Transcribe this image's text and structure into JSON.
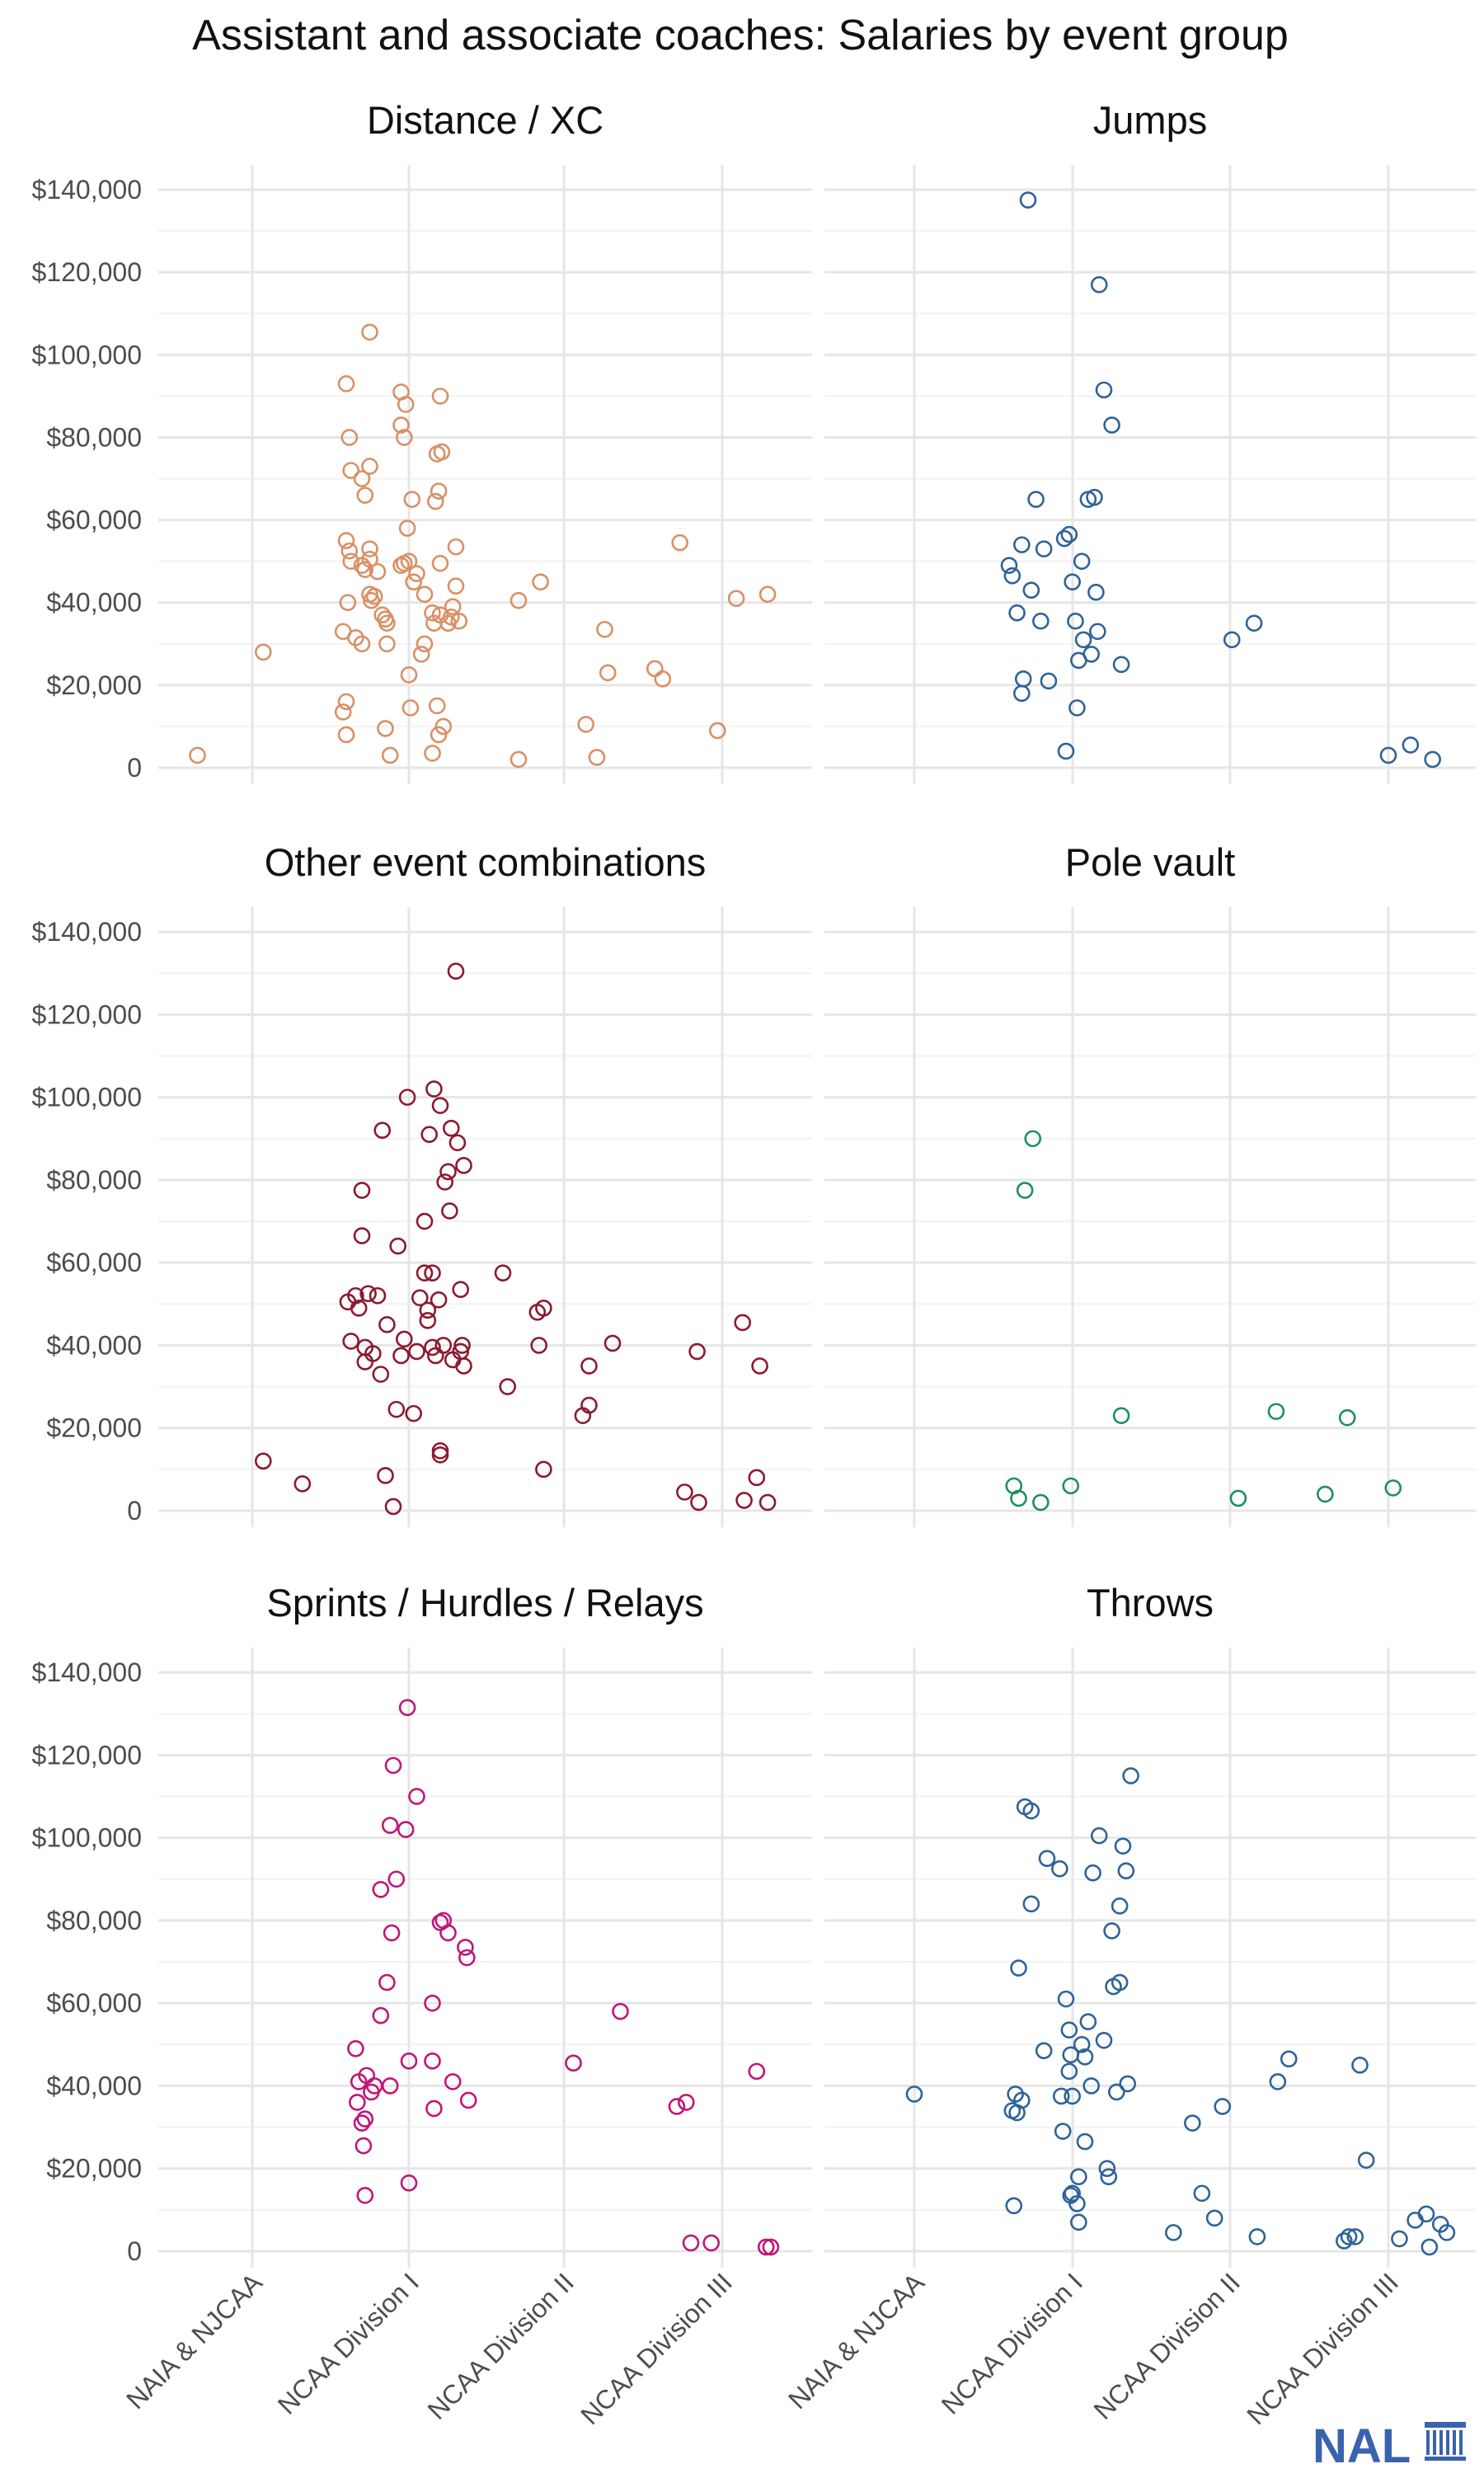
{
  "logo": {
    "text": "NAL",
    "color": "#3a63ad"
  },
  "chart_data": {
    "type": "scatter",
    "title": "Assistant and associate coaches: Salaries by event group",
    "xlabel": "",
    "ylabel": "",
    "categories": [
      "NAIA & NJCAA",
      "NCAA Division I",
      "NCAA Division II",
      "NCAA Division III"
    ],
    "y_ticks": [
      0,
      20000,
      40000,
      60000,
      80000,
      100000,
      120000,
      140000
    ],
    "y_tick_labels": [
      "0",
      "$20,000",
      "$40,000",
      "$60,000",
      "$80,000",
      "$100,000",
      "$120,000",
      "$140,000"
    ],
    "ylim": [
      -4000,
      146000
    ],
    "grid": true,
    "marker": "open-circle",
    "x_note": "x values are category positions (1 = NAIA & NJCAA ... 4 = NCAA Division III) including horizontal jitter",
    "panels": [
      {
        "title": "Distance / XC",
        "color": "#d99066",
        "points": [
          [
            0.65,
            3000
          ],
          [
            1.07,
            28000
          ],
          [
            1.6,
            93000
          ],
          [
            1.62,
            80000
          ],
          [
            1.63,
            72000
          ],
          [
            1.7,
            70000
          ],
          [
            1.72,
            66000
          ],
          [
            1.75,
            73000
          ],
          [
            1.75,
            105500
          ],
          [
            1.6,
            55000
          ],
          [
            1.62,
            52500
          ],
          [
            1.63,
            50000
          ],
          [
            1.7,
            49000
          ],
          [
            1.72,
            48000
          ],
          [
            1.75,
            42000
          ],
          [
            1.76,
            40500
          ],
          [
            1.78,
            41500
          ],
          [
            1.8,
            47500
          ],
          [
            1.83,
            37000
          ],
          [
            1.85,
            36000
          ],
          [
            1.86,
            35000
          ],
          [
            1.58,
            33000
          ],
          [
            1.66,
            31500
          ],
          [
            1.7,
            30000
          ],
          [
            1.86,
            30000
          ],
          [
            1.61,
            40000
          ],
          [
            1.6,
            16000
          ],
          [
            1.58,
            13500
          ],
          [
            1.6,
            8000
          ],
          [
            1.85,
            9500
          ],
          [
            1.88,
            3000
          ],
          [
            1.75,
            50500
          ],
          [
            1.75,
            53000
          ],
          [
            1.95,
            91000
          ],
          [
            1.98,
            88000
          ],
          [
            1.95,
            83000
          ],
          [
            1.97,
            80000
          ],
          [
            2.02,
            65000
          ],
          [
            1.99,
            58000
          ],
          [
            2.0,
            50000
          ],
          [
            1.97,
            49500
          ],
          [
            1.95,
            49000
          ],
          [
            2.05,
            47000
          ],
          [
            2.03,
            45000
          ],
          [
            2.1,
            42000
          ],
          [
            2.15,
            37500
          ],
          [
            2.16,
            35000
          ],
          [
            2.1,
            30000
          ],
          [
            2.08,
            27500
          ],
          [
            2.0,
            22500
          ],
          [
            2.01,
            14500
          ],
          [
            2.2,
            90000
          ],
          [
            2.18,
            76000
          ],
          [
            2.21,
            76500
          ],
          [
            2.19,
            67000
          ],
          [
            2.17,
            64500
          ],
          [
            2.3,
            53500
          ],
          [
            2.2,
            49500
          ],
          [
            2.3,
            44000
          ],
          [
            2.28,
            39000
          ],
          [
            2.27,
            36500
          ],
          [
            2.32,
            35500
          ],
          [
            2.25,
            35000
          ],
          [
            2.2,
            37000
          ],
          [
            2.18,
            15000
          ],
          [
            2.22,
            10000
          ],
          [
            2.19,
            8000
          ],
          [
            2.15,
            3500
          ],
          [
            2.7,
            2000
          ],
          [
            2.7,
            40500
          ],
          [
            2.84,
            45000
          ],
          [
            3.13,
            10500
          ],
          [
            3.2,
            2500
          ],
          [
            3.25,
            33500
          ],
          [
            3.27,
            23000
          ],
          [
            3.57,
            24000
          ],
          [
            3.62,
            21500
          ],
          [
            3.73,
            54500
          ],
          [
            3.97,
            9000
          ],
          [
            4.09,
            41000
          ],
          [
            4.29,
            42000
          ]
        ]
      },
      {
        "title": "Jumps",
        "color": "#2e6399",
        "points": [
          [
            1.6,
            49000
          ],
          [
            1.62,
            46500
          ],
          [
            1.65,
            37500
          ],
          [
            1.68,
            54000
          ],
          [
            1.74,
            43000
          ],
          [
            1.77,
            65000
          ],
          [
            1.8,
            35500
          ],
          [
            1.82,
            53000
          ],
          [
            1.69,
            21500
          ],
          [
            1.68,
            18000
          ],
          [
            1.85,
            21000
          ],
          [
            1.72,
            137500
          ],
          [
            1.95,
            55500
          ],
          [
            1.98,
            56500
          ],
          [
            2.0,
            45000
          ],
          [
            2.02,
            35500
          ],
          [
            2.06,
            50000
          ],
          [
            2.07,
            31000
          ],
          [
            2.1,
            65000
          ],
          [
            2.12,
            27500
          ],
          [
            2.04,
            26000
          ],
          [
            2.03,
            14500
          ],
          [
            1.96,
            4000
          ],
          [
            2.15,
            42500
          ],
          [
            2.16,
            33000
          ],
          [
            2.2,
            91500
          ],
          [
            2.25,
            83000
          ],
          [
            2.31,
            25000
          ],
          [
            2.14,
            65500
          ],
          [
            2.17,
            117000
          ],
          [
            3.01,
            31000
          ],
          [
            3.15,
            35000
          ],
          [
            4.0,
            3000
          ],
          [
            4.14,
            5500
          ],
          [
            4.28,
            2000
          ]
        ]
      },
      {
        "title": "Other event combinations",
        "color": "#8c1a2e",
        "points": [
          [
            1.07,
            12000
          ],
          [
            1.32,
            6500
          ],
          [
            1.61,
            50500
          ],
          [
            1.63,
            41000
          ],
          [
            1.66,
            52000
          ],
          [
            1.68,
            49000
          ],
          [
            1.7,
            77500
          ],
          [
            1.7,
            66500
          ],
          [
            1.72,
            39500
          ],
          [
            1.72,
            36000
          ],
          [
            1.74,
            52500
          ],
          [
            1.77,
            38000
          ],
          [
            1.8,
            52000
          ],
          [
            1.82,
            33000
          ],
          [
            1.83,
            92000
          ],
          [
            1.85,
            8500
          ],
          [
            1.86,
            45000
          ],
          [
            1.9,
            1000
          ],
          [
            1.92,
            24500
          ],
          [
            1.93,
            64000
          ],
          [
            1.95,
            37500
          ],
          [
            1.97,
            41500
          ],
          [
            1.99,
            100000
          ],
          [
            2.03,
            23500
          ],
          [
            2.05,
            38500
          ],
          [
            2.07,
            51500
          ],
          [
            2.1,
            70000
          ],
          [
            2.1,
            57500
          ],
          [
            2.12,
            48500
          ],
          [
            2.12,
            46000
          ],
          [
            2.13,
            91000
          ],
          [
            2.15,
            57500
          ],
          [
            2.15,
            39500
          ],
          [
            2.16,
            102000
          ],
          [
            2.17,
            37500
          ],
          [
            2.19,
            51000
          ],
          [
            2.2,
            98000
          ],
          [
            2.2,
            14500
          ],
          [
            2.2,
            13500
          ],
          [
            2.22,
            40000
          ],
          [
            2.23,
            79500
          ],
          [
            2.25,
            82000
          ],
          [
            2.26,
            72500
          ],
          [
            2.27,
            92500
          ],
          [
            2.28,
            36500
          ],
          [
            2.3,
            130500
          ],
          [
            2.31,
            89000
          ],
          [
            2.33,
            38500
          ],
          [
            2.34,
            40000
          ],
          [
            2.35,
            83500
          ],
          [
            2.35,
            35000
          ],
          [
            2.33,
            53500
          ],
          [
            2.6,
            57500
          ],
          [
            2.63,
            30000
          ],
          [
            2.82,
            48000
          ],
          [
            2.83,
            40000
          ],
          [
            2.86,
            49000
          ],
          [
            2.86,
            10000
          ],
          [
            3.11,
            23000
          ],
          [
            3.15,
            25500
          ],
          [
            3.15,
            35000
          ],
          [
            3.3,
            40500
          ],
          [
            3.76,
            4500
          ],
          [
            3.84,
            38500
          ],
          [
            3.85,
            2000
          ],
          [
            4.13,
            45500
          ],
          [
            4.14,
            2500
          ],
          [
            4.22,
            8000
          ],
          [
            4.24,
            35000
          ],
          [
            4.29,
            2000
          ]
        ]
      },
      {
        "title": "Pole vault",
        "color": "#1e8f5a",
        "points": [
          [
            1.63,
            6000
          ],
          [
            1.66,
            3000
          ],
          [
            1.7,
            77500
          ],
          [
            1.75,
            90000
          ],
          [
            1.8,
            2000
          ],
          [
            1.99,
            6000
          ],
          [
            2.31,
            23000
          ],
          [
            3.05,
            3000
          ],
          [
            3.29,
            24000
          ],
          [
            3.6,
            4000
          ],
          [
            3.74,
            22500
          ],
          [
            4.03,
            5500
          ]
        ]
      },
      {
        "title": "Sprints / Hurdles / Relays",
        "color": "#c0167a",
        "points": [
          [
            1.66,
            49000
          ],
          [
            1.67,
            36000
          ],
          [
            1.68,
            41000
          ],
          [
            1.7,
            31000
          ],
          [
            1.72,
            32000
          ],
          [
            1.71,
            25500
          ],
          [
            1.72,
            13500
          ],
          [
            1.73,
            42500
          ],
          [
            1.76,
            38500
          ],
          [
            1.78,
            40000
          ],
          [
            1.82,
            57000
          ],
          [
            1.82,
            87500
          ],
          [
            1.86,
            65000
          ],
          [
            1.88,
            103000
          ],
          [
            1.88,
            40000
          ],
          [
            1.89,
            77000
          ],
          [
            1.9,
            117500
          ],
          [
            1.92,
            90000
          ],
          [
            1.98,
            102000
          ],
          [
            1.99,
            131500
          ],
          [
            2.0,
            16500
          ],
          [
            2.0,
            46000
          ],
          [
            2.05,
            110000
          ],
          [
            2.15,
            60000
          ],
          [
            2.15,
            46000
          ],
          [
            2.16,
            34500
          ],
          [
            2.2,
            79500
          ],
          [
            2.22,
            80000
          ],
          [
            2.25,
            77000
          ],
          [
            2.28,
            41000
          ],
          [
            2.36,
            73500
          ],
          [
            2.37,
            71000
          ],
          [
            2.38,
            36500
          ],
          [
            3.05,
            45500
          ],
          [
            3.35,
            58000
          ],
          [
            3.71,
            35000
          ],
          [
            3.77,
            36000
          ],
          [
            3.8,
            2000
          ],
          [
            3.93,
            2000
          ],
          [
            4.22,
            43500
          ],
          [
            4.28,
            1000
          ],
          [
            4.31,
            1000
          ]
        ]
      },
      {
        "title": "Throws",
        "color": "#2e6399",
        "points": [
          [
            1.0,
            38000
          ],
          [
            1.62,
            34000
          ],
          [
            1.63,
            11000
          ],
          [
            1.64,
            38000
          ],
          [
            1.65,
            33500
          ],
          [
            1.66,
            68500
          ],
          [
            1.68,
            36500
          ],
          [
            1.7,
            107500
          ],
          [
            1.74,
            106500
          ],
          [
            1.74,
            84000
          ],
          [
            1.82,
            48500
          ],
          [
            1.84,
            95000
          ],
          [
            1.92,
            92500
          ],
          [
            1.93,
            37500
          ],
          [
            1.94,
            29000
          ],
          [
            1.96,
            61000
          ],
          [
            1.98,
            53500
          ],
          [
            1.98,
            43500
          ],
          [
            1.99,
            47500
          ],
          [
            1.99,
            13500
          ],
          [
            2.0,
            37500
          ],
          [
            2.0,
            14000
          ],
          [
            2.03,
            11500
          ],
          [
            2.04,
            7000
          ],
          [
            2.04,
            18000
          ],
          [
            2.06,
            50000
          ],
          [
            2.08,
            47000
          ],
          [
            2.08,
            26500
          ],
          [
            2.1,
            55500
          ],
          [
            2.12,
            40000
          ],
          [
            2.13,
            91500
          ],
          [
            2.17,
            100500
          ],
          [
            2.2,
            51000
          ],
          [
            2.22,
            20000
          ],
          [
            2.23,
            18000
          ],
          [
            2.25,
            77500
          ],
          [
            2.26,
            64000
          ],
          [
            2.28,
            38500
          ],
          [
            2.3,
            65000
          ],
          [
            2.3,
            83500
          ],
          [
            2.32,
            98000
          ],
          [
            2.34,
            92000
          ],
          [
            2.35,
            40500
          ],
          [
            2.37,
            115000
          ],
          [
            2.64,
            4500
          ],
          [
            2.76,
            31000
          ],
          [
            2.82,
            14000
          ],
          [
            2.9,
            8000
          ],
          [
            2.95,
            35000
          ],
          [
            3.17,
            3500
          ],
          [
            3.3,
            41000
          ],
          [
            3.37,
            46500
          ],
          [
            3.72,
            2500
          ],
          [
            3.75,
            3500
          ],
          [
            3.79,
            3500
          ],
          [
            3.82,
            45000
          ],
          [
            3.86,
            22000
          ],
          [
            4.07,
            3000
          ],
          [
            4.17,
            7500
          ],
          [
            4.24,
            9000
          ],
          [
            4.26,
            1000
          ],
          [
            4.33,
            6500
          ],
          [
            4.37,
            4500
          ]
        ]
      }
    ]
  }
}
